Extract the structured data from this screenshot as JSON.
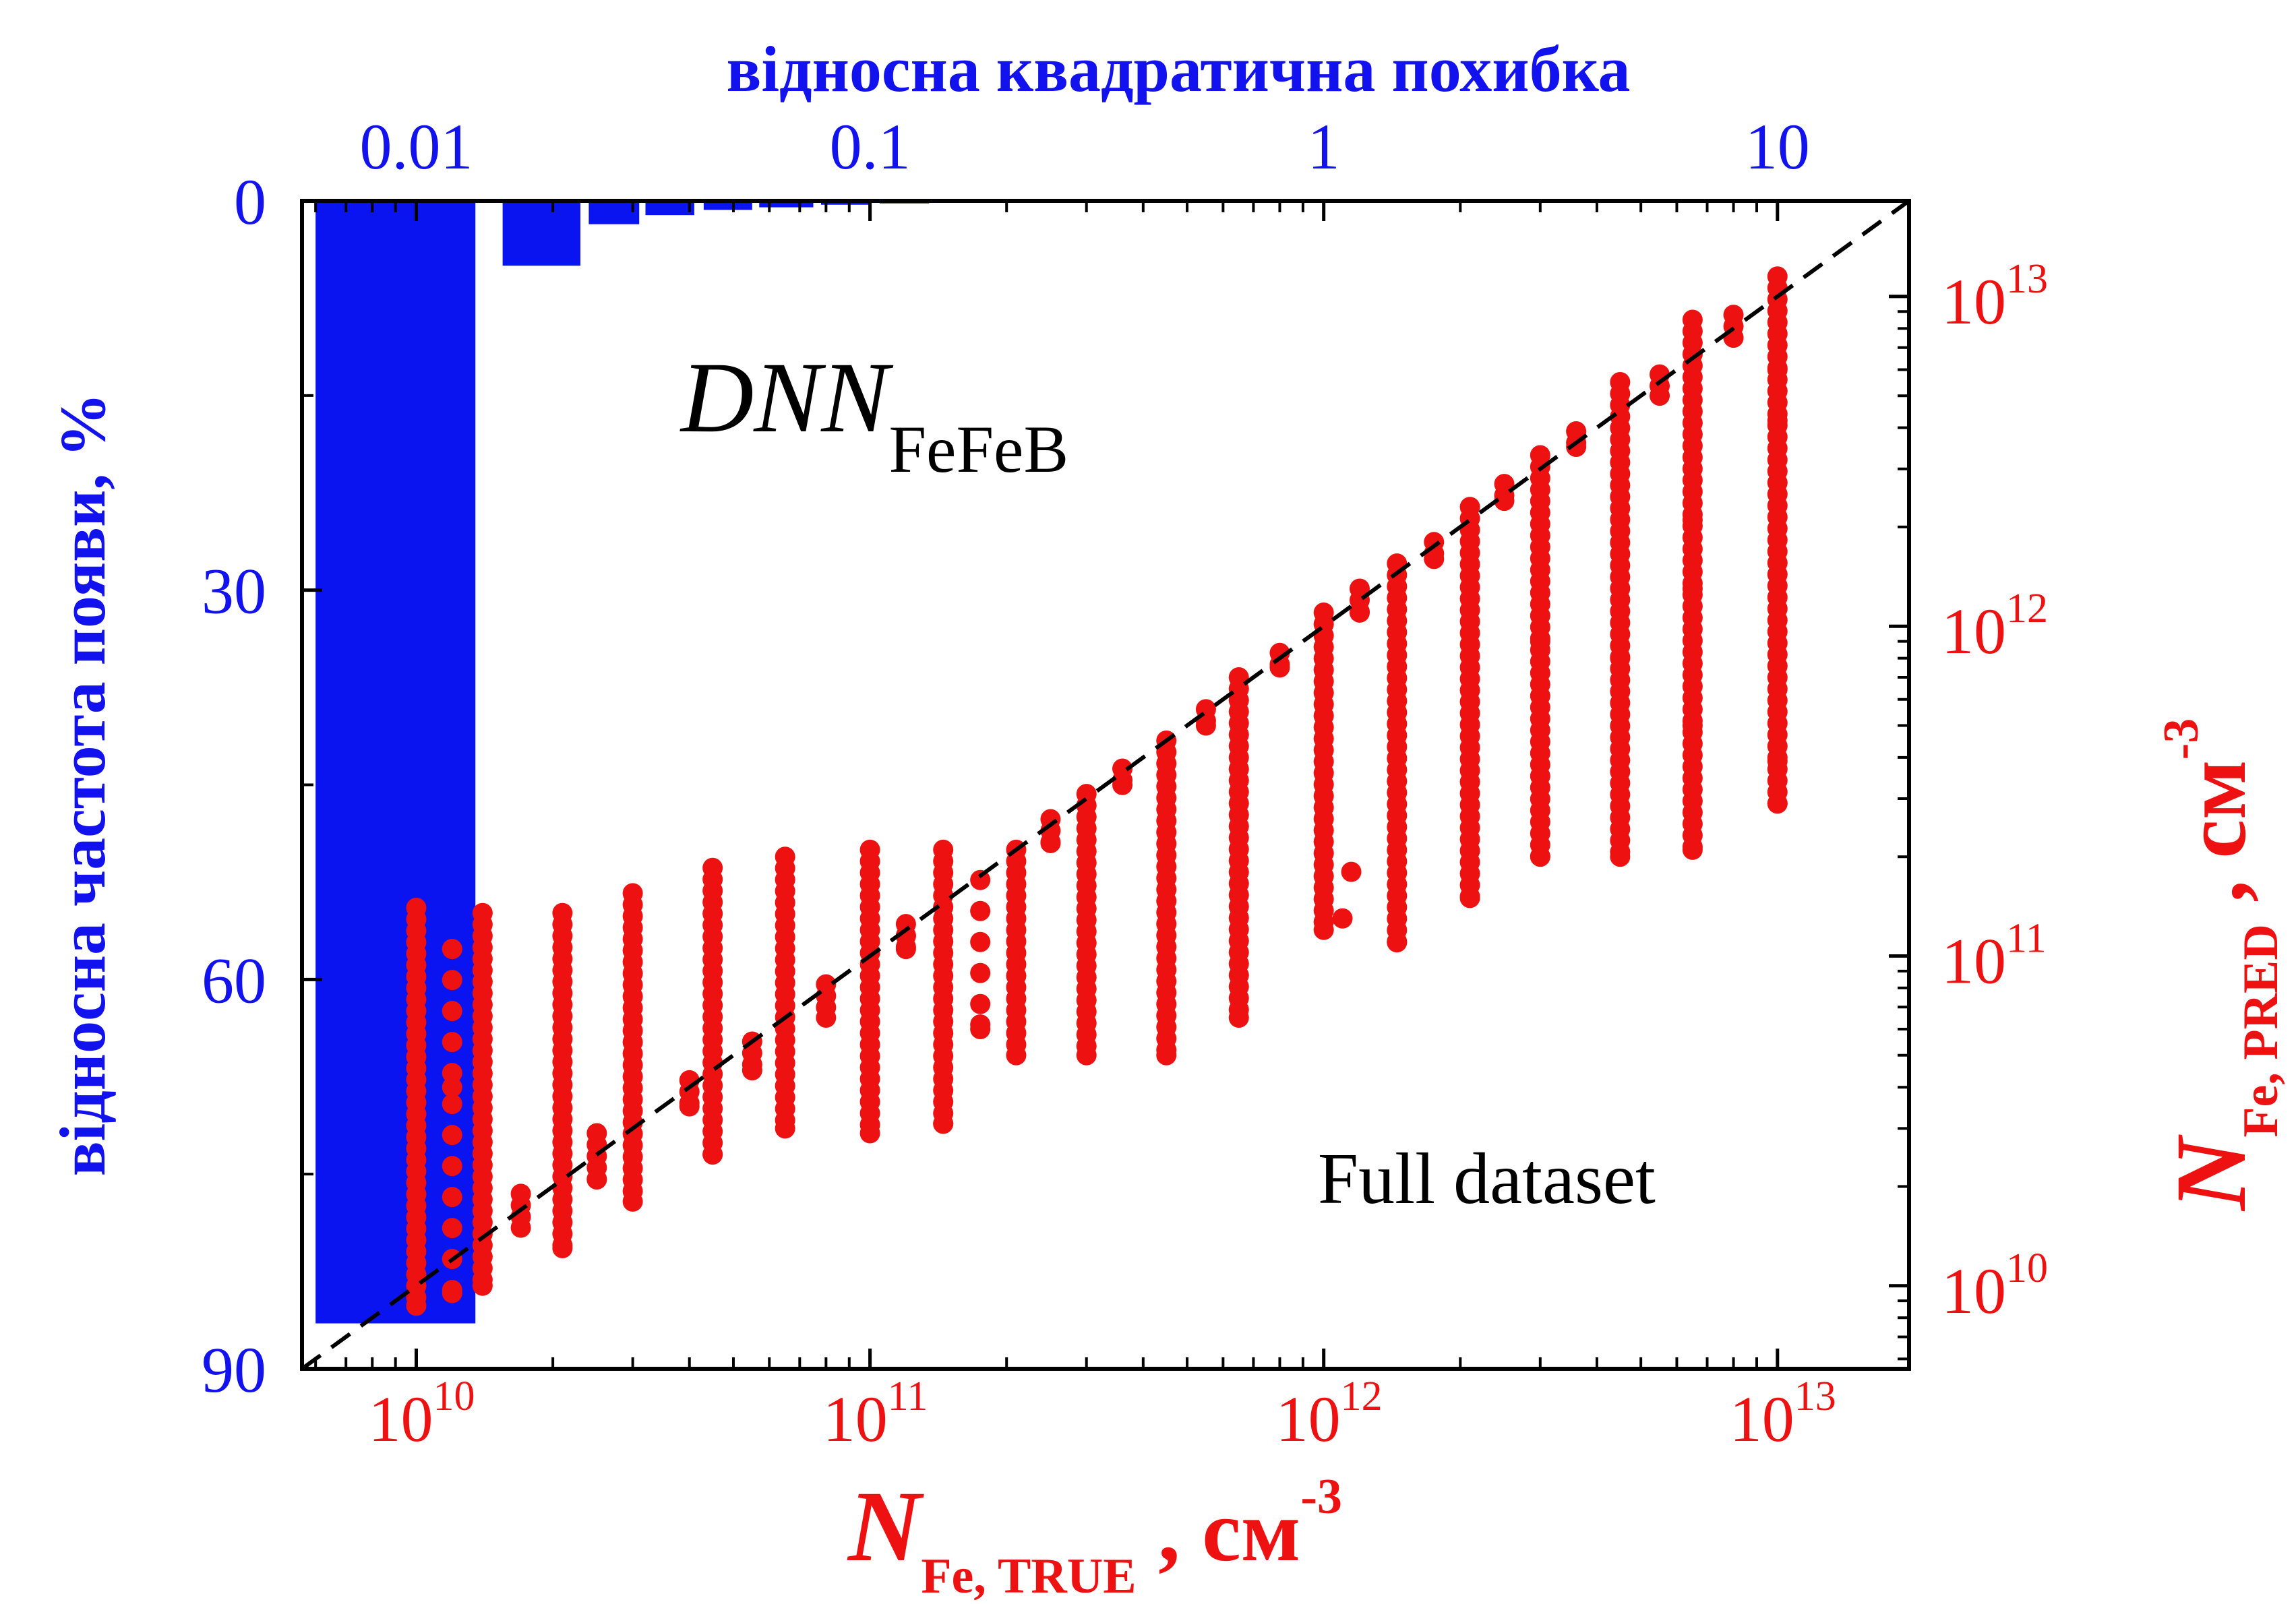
{
  "chart_data": {
    "type": "scatter",
    "title": "",
    "annotations": {
      "model": "DNN",
      "model_sub": "FeFeB",
      "dataset": "Full dataset"
    },
    "axes": {
      "bottom": {
        "label_symbol": "N",
        "label_sub": "Fe, TRUE",
        "label_comma": " , ",
        "label_unit": "см",
        "label_unit_sup": "-3",
        "scale": "log",
        "lim": [
          5600000000.0,
          19500000000000.0
        ],
        "ticks": [
          {
            "value": 10000000000.0,
            "base": "10",
            "exp": "10"
          },
          {
            "value": 100000000000.0,
            "base": "10",
            "exp": "11"
          },
          {
            "value": 1000000000000.0,
            "base": "10",
            "exp": "12"
          },
          {
            "value": 10000000000000.0,
            "base": "10",
            "exp": "13"
          }
        ],
        "color": "#ee1111"
      },
      "right": {
        "label_symbol": "N",
        "label_sub": "Fe, PRED",
        "label_comma": " , ",
        "label_unit": "см",
        "label_unit_sup": "-3",
        "scale": "log",
        "lim": [
          5600000000.0,
          19500000000000.0
        ],
        "ticks": [
          {
            "value": 10000000000.0,
            "base": "10",
            "exp": "10"
          },
          {
            "value": 100000000000.0,
            "base": "10",
            "exp": "11"
          },
          {
            "value": 1000000000000.0,
            "base": "10",
            "exp": "12"
          },
          {
            "value": 10000000000000.0,
            "base": "10",
            "exp": "13"
          }
        ],
        "color": "#ee1111"
      },
      "top": {
        "label": "відносна квадратична похибка",
        "scale": "log",
        "lim": [
          0.0056,
          19.5
        ],
        "ticks": [
          {
            "value": 0.01,
            "label": "0.01"
          },
          {
            "value": 0.1,
            "label": "0.1"
          },
          {
            "value": 1,
            "label": "1"
          },
          {
            "value": 10,
            "label": "10"
          }
        ],
        "color": "#1212ee"
      },
      "left": {
        "label": "відносна частота появи, %",
        "scale": "linear",
        "inverted": true,
        "lim": [
          0,
          90
        ],
        "ticks": [
          {
            "value": 0,
            "label": "0"
          },
          {
            "value": 30,
            "label": "30"
          },
          {
            "value": 60,
            "label": "60"
          },
          {
            "value": 90,
            "label": "90"
          }
        ],
        "color": "#1212ee"
      }
    },
    "histogram": {
      "color": "#0a14f0",
      "bins": [
        {
          "x0": 0.006,
          "x1": 0.0135,
          "value": 86.5
        },
        {
          "x0": 0.0155,
          "x1": 0.023,
          "value": 5.0
        },
        {
          "x0": 0.024,
          "x1": 0.031,
          "value": 1.8
        },
        {
          "x0": 0.032,
          "x1": 0.041,
          "value": 1.1
        },
        {
          "x0": 0.043,
          "x1": 0.055,
          "value": 0.7
        },
        {
          "x0": 0.057,
          "x1": 0.075,
          "value": 0.5
        },
        {
          "x0": 0.078,
          "x1": 0.1,
          "value": 0.3
        },
        {
          "x0": 0.105,
          "x1": 0.135,
          "value": 0.2
        },
        {
          "x0": 0.14,
          "x1": 0.18,
          "value": 0.1
        }
      ]
    },
    "reference_line": {
      "style": "dashed",
      "color": "#000000",
      "from": 5600000000.0,
      "to": 19500000000000.0
    },
    "scatter": {
      "color": "#ee1111",
      "columns": [
        {
          "x": 10000000000.0,
          "ymin": 8700000000.0,
          "ymax": 140000000000.0
        },
        {
          "x": 12000000000.0,
          "ymin": 9500000000.0,
          "ymax": 105000000000.0,
          "sparse": true
        },
        {
          "x": 14000000000.0,
          "ymin": 10000000000.0,
          "ymax": 135000000000.0
        },
        {
          "x": 17000000000.0,
          "ymin": 15000000000.0,
          "ymax": 19000000000.0
        },
        {
          "x": 21000000000.0,
          "ymin": 13000000000.0,
          "ymax": 135000000000.0
        },
        {
          "x": 25000000000.0,
          "ymin": 21000000000.0,
          "ymax": 29000000000.0
        },
        {
          "x": 30000000000.0,
          "ymin": 18000000000.0,
          "ymax": 155000000000.0
        },
        {
          "x": 40000000000.0,
          "ymin": 35000000000.0,
          "ymax": 42000000000.0
        },
        {
          "x": 45000000000.0,
          "ymin": 25000000000.0,
          "ymax": 185000000000.0
        },
        {
          "x": 55000000000.0,
          "ymin": 45000000000.0,
          "ymax": 55000000000.0
        },
        {
          "x": 65000000000.0,
          "ymin": 30000000000.0,
          "ymax": 200000000000.0
        },
        {
          "x": 80000000000.0,
          "ymin": 65000000000.0,
          "ymax": 82000000000.0
        },
        {
          "x": 100000000000.0,
          "ymin": 29000000000.0,
          "ymax": 210000000000.0
        },
        {
          "x": 120000000000.0,
          "ymin": 105000000000.0,
          "ymax": 125000000000.0
        },
        {
          "x": 145000000000.0,
          "ymin": 31000000000.0,
          "ymax": 210000000000.0
        },
        {
          "x": 175000000000.0,
          "ymin": 60000000000.0,
          "ymax": 170000000000.0,
          "sparse": true
        },
        {
          "x": 210000000000.0,
          "ymin": 50000000000.0,
          "ymax": 210000000000.0
        },
        {
          "x": 250000000000.0,
          "ymin": 220000000000.0,
          "ymax": 260000000000.0
        },
        {
          "x": 300000000000.0,
          "ymin": 50000000000.0,
          "ymax": 310000000000.0
        },
        {
          "x": 360000000000.0,
          "ymin": 330000000000.0,
          "ymax": 370000000000.0
        },
        {
          "x": 450000000000.0,
          "ymin": 50000000000.0,
          "ymax": 450000000000.0
        },
        {
          "x": 550000000000.0,
          "ymin": 500000000000.0,
          "ymax": 560000000000.0
        },
        {
          "x": 650000000000.0,
          "ymin": 65000000000.0,
          "ymax": 700000000000.0
        },
        {
          "x": 800000000000.0,
          "ymin": 750000000000.0,
          "ymax": 830000000000.0
        },
        {
          "x": 1000000000000.0,
          "ymin": 120000000000.0,
          "ymax": 1100000000000.0
        },
        {
          "x": 1200000000000.0,
          "ymin": 1100000000000.0,
          "ymax": 1300000000000.0
        },
        {
          "x": 1450000000000.0,
          "ymin": 110000000000.0,
          "ymax": 1550000000000.0
        },
        {
          "x": 1750000000000.0,
          "ymin": 1600000000000.0,
          "ymax": 1800000000000.0
        },
        {
          "x": 2100000000000.0,
          "ymin": 150000000000.0,
          "ymax": 2300000000000.0
        },
        {
          "x": 2500000000000.0,
          "ymin": 2400000000000.0,
          "ymax": 2700000000000.0
        },
        {
          "x": 3000000000000.0,
          "ymin": 200000000000.0,
          "ymax": 3300000000000.0
        },
        {
          "x": 3600000000000.0,
          "ymin": 3500000000000.0,
          "ymax": 3900000000000.0
        },
        {
          "x": 4500000000000.0,
          "ymin": 200000000000.0,
          "ymax": 5500000000000.0
        },
        {
          "x": 5500000000000.0,
          "ymin": 5000000000000.0,
          "ymax": 5800000000000.0
        },
        {
          "x": 6500000000000.0,
          "ymin": 210000000000.0,
          "ymax": 8500000000000.0
        },
        {
          "x": 8000000000000.0,
          "ymin": 7500000000000.0,
          "ymax": 8800000000000.0
        },
        {
          "x": 10000000000000.0,
          "ymin": 290000000000.0,
          "ymax": 11500000000000.0
        }
      ],
      "outliers": [
        {
          "x": 12000000000.0,
          "y": 105000000000.0
        },
        {
          "x": 12000000000.0,
          "y": 40000000000.0
        },
        {
          "x": 120000000000.0,
          "y": 115000000000.0
        },
        {
          "x": 145000000000.0,
          "y": 31000000000.0
        },
        {
          "x": 175000000000.0,
          "y": 62000000000.0
        },
        {
          "x": 1100000000000.0,
          "y": 130000000000.0
        },
        {
          "x": 1150000000000.0,
          "y": 180000000000.0
        },
        {
          "x": 3000000000000.0,
          "y": 900000000000.0
        },
        {
          "x": 4500000000000.0,
          "y": 800000000000.0
        },
        {
          "x": 6500000000000.0,
          "y": 2100000000000.0
        },
        {
          "x": 6500000000000.0,
          "y": 1300000000000.0
        },
        {
          "x": 6500000000000.0,
          "y": 500000000000.0
        },
        {
          "x": 10000000000000.0,
          "y": 390000000000.0
        },
        {
          "x": 10000000000000.0,
          "y": 6000000000000.0
        },
        {
          "x": 10000000000000.0,
          "y": 4200000000000.0
        }
      ]
    }
  }
}
